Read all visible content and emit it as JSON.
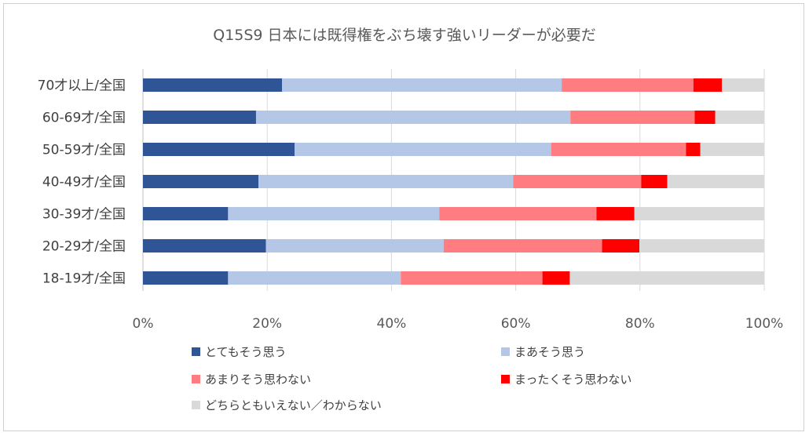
{
  "chart_data": {
    "type": "bar",
    "orientation": "horizontal",
    "stacked": "percent",
    "title": "Q15S9 日本には既得権をぶち壊す強いリーダーが必要だ",
    "categories": [
      "70才以上/全国",
      "60-69才/全国",
      "50-59才/全国",
      "40-49才/全国",
      "30-39才/全国",
      "20-29才/全国",
      "18-19才/全国"
    ],
    "series": [
      {
        "name": "とてもそう思う",
        "color": "#2f5597",
        "values": [
          22.4,
          18.2,
          24.4,
          18.6,
          13.7,
          19.8,
          13.7
        ]
      },
      {
        "name": "まあそう思う",
        "color": "#b4c7e7",
        "values": [
          45.0,
          50.6,
          41.3,
          41.0,
          34.0,
          28.6,
          27.8
        ]
      },
      {
        "name": "あまりそう思わない",
        "color": "#ff7c80",
        "values": [
          21.2,
          20.0,
          21.7,
          20.6,
          25.3,
          25.5,
          22.8
        ]
      },
      {
        "name": "まったくそう思わない",
        "color": "#ff0000",
        "values": [
          4.6,
          3.3,
          2.3,
          4.2,
          6.1,
          6.0,
          4.4
        ]
      },
      {
        "name": "どちらともいえない／わからない",
        "color": "#d9d9d9",
        "values": [
          6.8,
          7.9,
          10.3,
          15.6,
          20.9,
          20.1,
          31.3
        ]
      }
    ],
    "xlim": [
      0,
      100
    ],
    "xticks": [
      "0%",
      "20%",
      "40%",
      "60%",
      "80%",
      "100%"
    ],
    "grid": true,
    "legend_position": "bottom"
  }
}
